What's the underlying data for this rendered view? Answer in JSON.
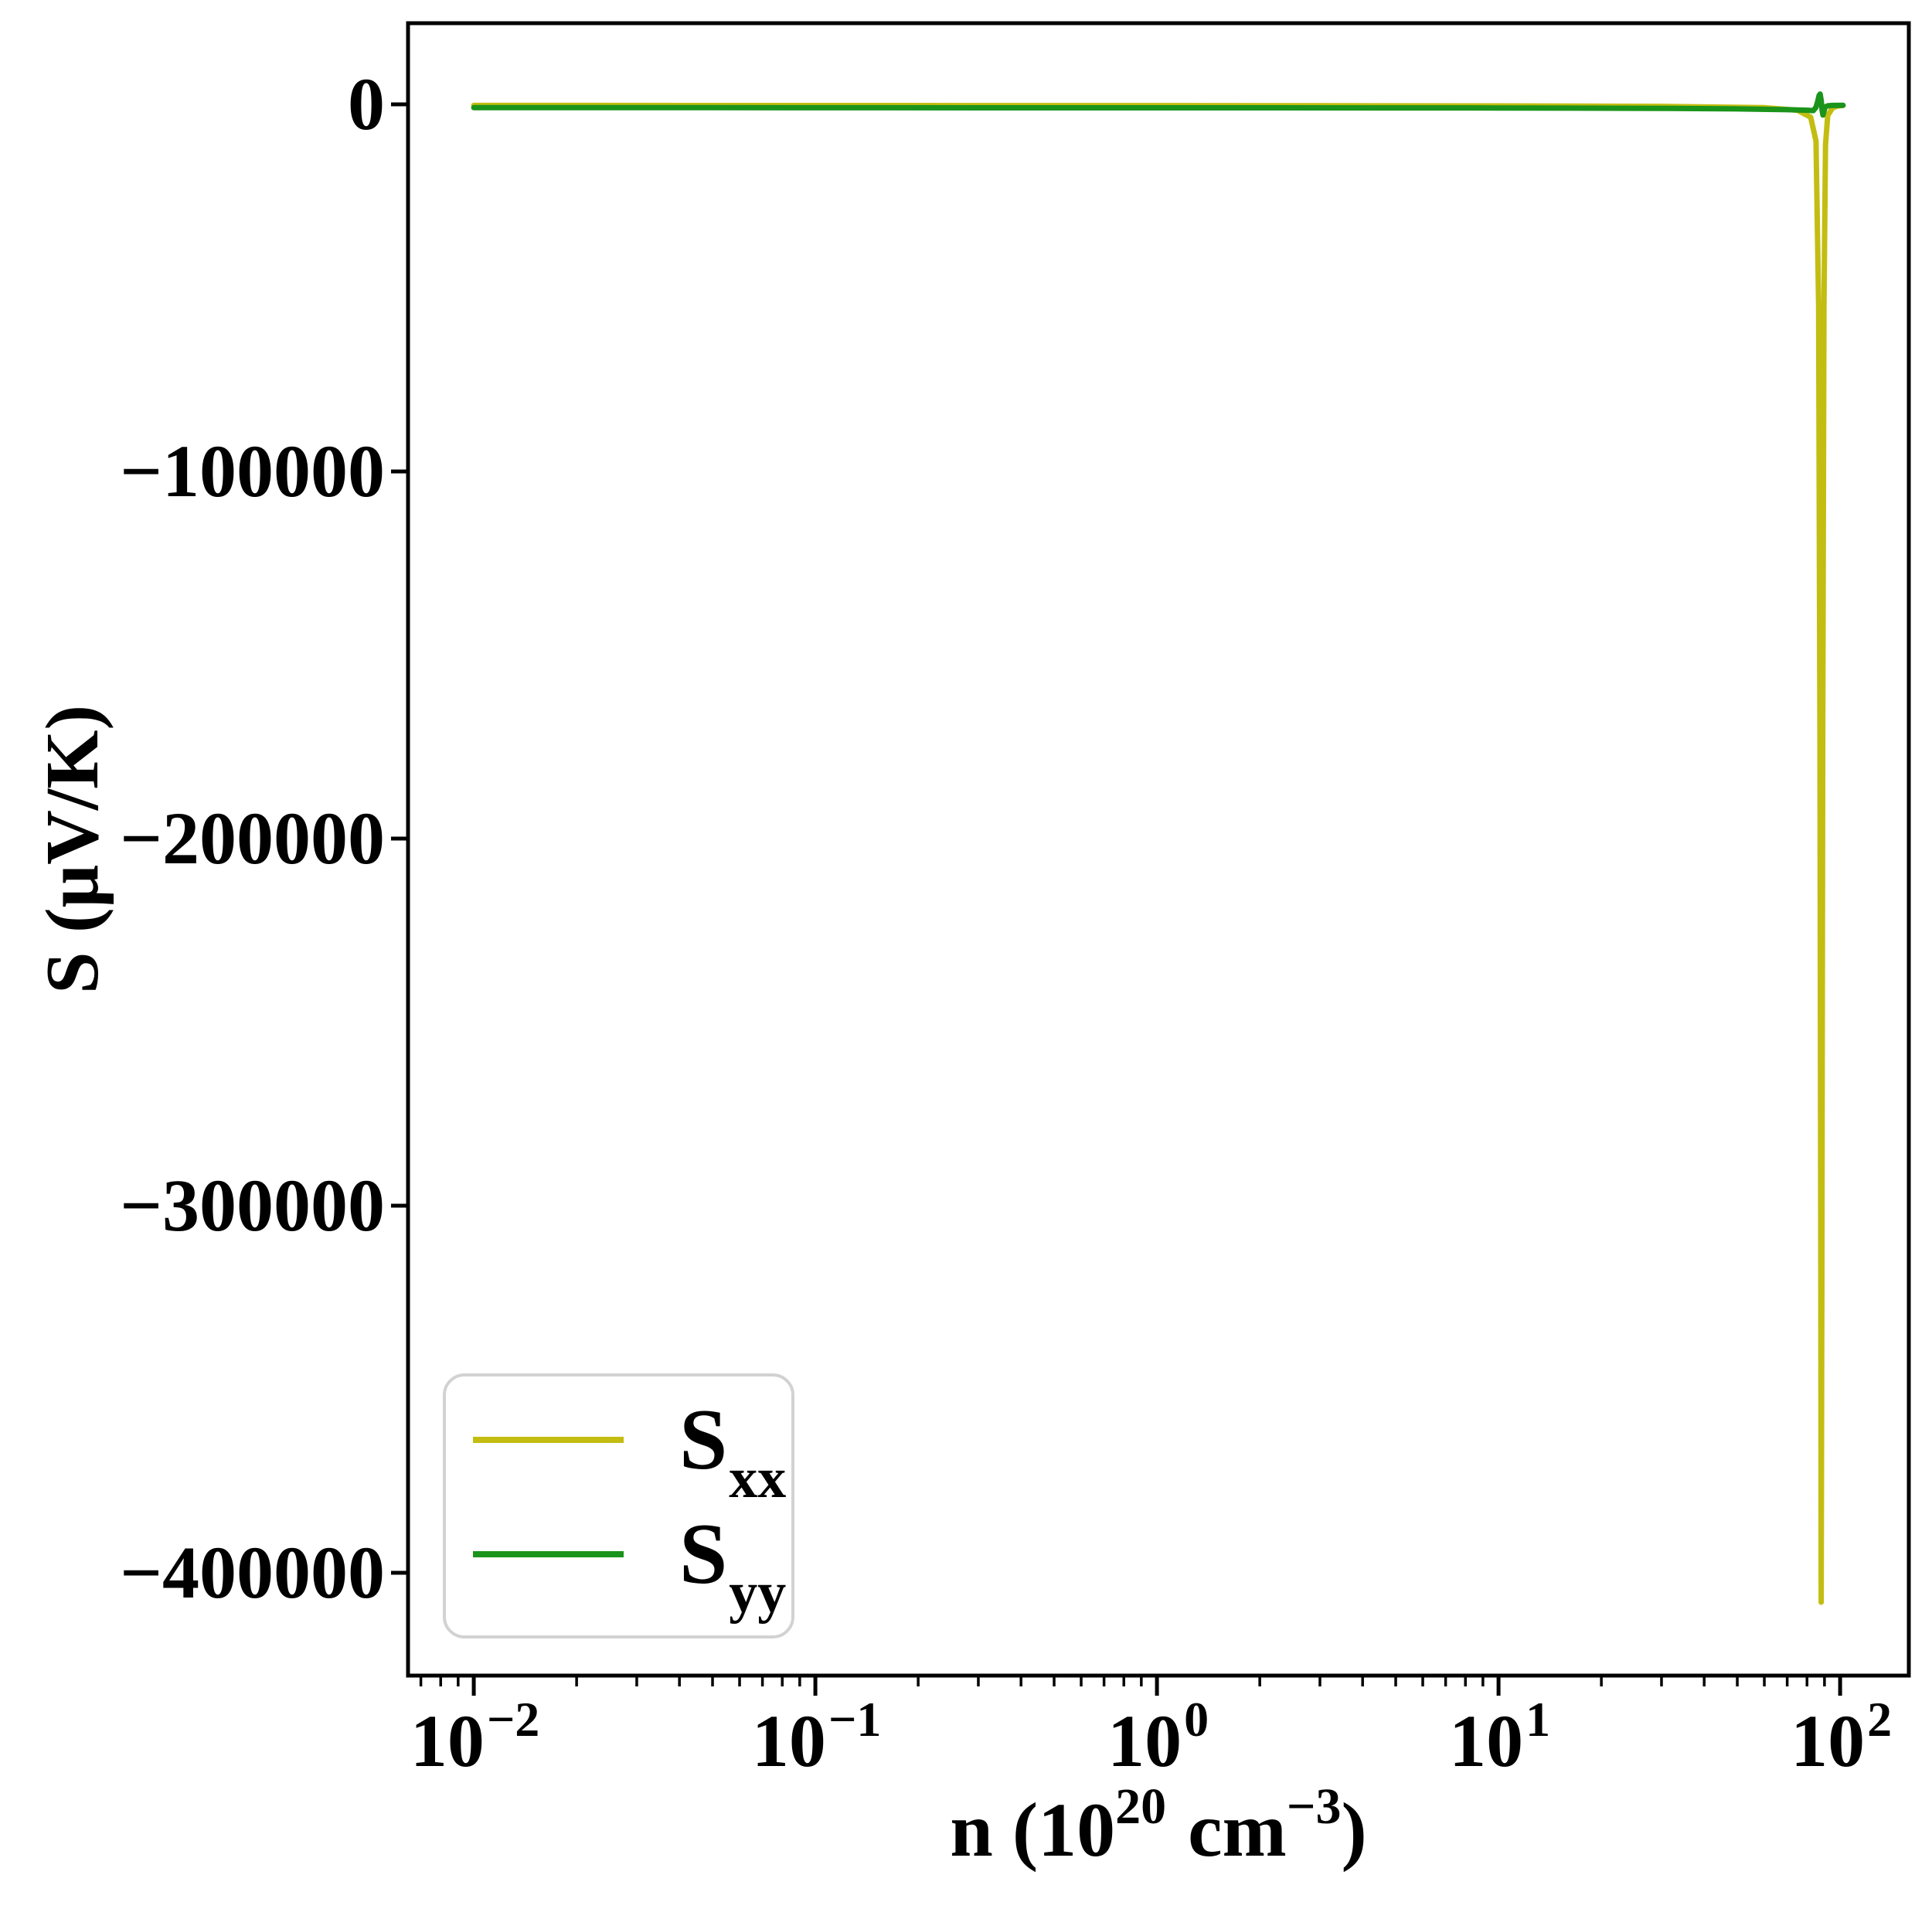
{
  "chart_data": {
    "type": "line",
    "title": "",
    "xlabel": {
      "pre": "n (10",
      "sup1": "20",
      "mid": "cm",
      "sup2": "−3",
      "post": ")"
    },
    "ylabel": "S (μV/K)",
    "x_scale": "log",
    "grid": false,
    "xlim": [
      0.00642,
      158.9
    ],
    "ylim": [
      -428000,
      22100
    ],
    "xticks": [
      {
        "value": 0.01,
        "base": "10",
        "exp": "−2"
      },
      {
        "value": 0.1,
        "base": "10",
        "exp": "−1"
      },
      {
        "value": 1,
        "base": "10",
        "exp": "0"
      },
      {
        "value": 10,
        "base": "10",
        "exp": "1"
      },
      {
        "value": 100,
        "base": "10",
        "exp": "2"
      }
    ],
    "yticks": [
      {
        "value": 0,
        "label": "0"
      },
      {
        "value": -100000,
        "label": "−100000"
      },
      {
        "value": -200000,
        "label": "−200000"
      },
      {
        "value": -300000,
        "label": "−300000"
      },
      {
        "value": -400000,
        "label": "−400000"
      }
    ],
    "legend": {
      "position": "lower left",
      "entries": [
        {
          "label_main": "S",
          "label_sub": "xx",
          "color": "#c3bd12"
        },
        {
          "label_main": "S",
          "label_sub": "yy",
          "color": "#1a941a"
        }
      ]
    },
    "series": [
      {
        "name": "Sxx",
        "color": "#c3bd12",
        "points": [
          [
            0.01,
            -300
          ],
          [
            0.02,
            -310
          ],
          [
            0.05,
            -315
          ],
          [
            0.1,
            -320
          ],
          [
            0.3,
            -335
          ],
          [
            1,
            -350
          ],
          [
            3,
            -380
          ],
          [
            10,
            -420
          ],
          [
            30,
            -550
          ],
          [
            60,
            -900
          ],
          [
            75,
            -1600
          ],
          [
            82,
            -3500
          ],
          [
            85,
            -10000
          ],
          [
            86.5,
            -55000
          ],
          [
            87.3,
            -175000
          ],
          [
            87.8,
            -320000
          ],
          [
            88,
            -408000
          ],
          [
            88.45,
            -320000
          ],
          [
            88.95,
            -175000
          ],
          [
            89.7,
            -55000
          ],
          [
            90.6,
            -11000
          ],
          [
            92,
            -3000
          ],
          [
            95,
            -1000
          ],
          [
            98,
            -500
          ],
          [
            102,
            -300
          ]
        ]
      },
      {
        "name": "Syy",
        "color": "#1a941a",
        "points": [
          [
            0.01,
            -900
          ],
          [
            0.05,
            -915
          ],
          [
            0.1,
            -930
          ],
          [
            0.5,
            -950
          ],
          [
            1,
            -960
          ],
          [
            5,
            -980
          ],
          [
            10,
            -1000
          ],
          [
            30,
            -1100
          ],
          [
            50,
            -1250
          ],
          [
            70,
            -1450
          ],
          [
            80,
            -1600
          ],
          [
            83.5,
            -1700
          ],
          [
            85,
            -800
          ],
          [
            86,
            800
          ],
          [
            86.8,
            2400
          ],
          [
            87.4,
            2800
          ],
          [
            88,
            1100
          ],
          [
            88.6,
            -1800
          ],
          [
            89.1,
            -2900
          ],
          [
            89.7,
            -1900
          ],
          [
            90.4,
            -700
          ],
          [
            92,
            -400
          ],
          [
            95,
            -300
          ],
          [
            102,
            -250
          ]
        ]
      }
    ]
  },
  "style": {
    "spine_color": "#000000",
    "tick_color": "#000000",
    "legend_border_color": "#d2d2d2",
    "background": "#ffffff"
  }
}
